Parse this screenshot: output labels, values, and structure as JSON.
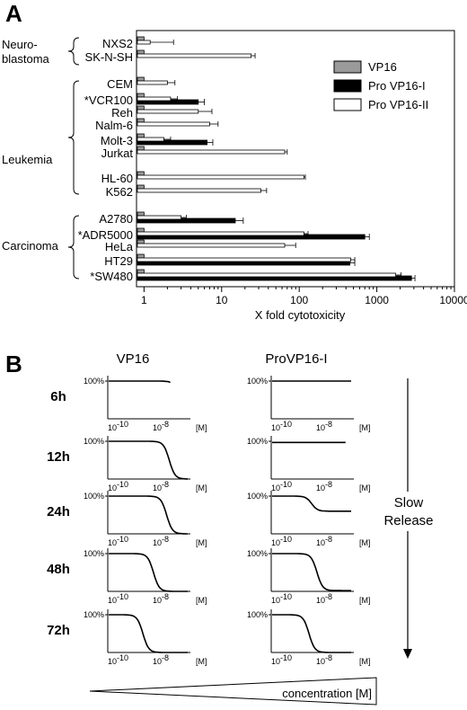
{
  "panels": {
    "a": "A",
    "b": "B"
  },
  "chart_data": [
    {
      "type": "bar",
      "orientation": "horizontal",
      "xscale": "log",
      "xlim": [
        0.8,
        10000
      ],
      "xticks": [
        "1",
        "10",
        "100",
        "1000",
        "10000"
      ],
      "xlabel": "X fold cytotoxicity",
      "legend": {
        "placement": "top-right",
        "entries": [
          "VP16",
          "Pro VP16-I",
          "Pro VP16-II"
        ]
      },
      "series_colors": [
        "#9a9a9a",
        "#000000",
        "#ffffff"
      ],
      "groups": [
        {
          "label": "Neuro-\nblastoma",
          "line1": "Neuro-",
          "line2": "blastoma",
          "cells": [
            "NXS2",
            "SK-N-SH"
          ]
        },
        {
          "label": "Leukemia",
          "cells": [
            "CEM",
            "*VCR100",
            "Reh",
            "Nalm-6",
            "Molt-3",
            "Jurkat",
            "HL-60",
            "K562"
          ]
        },
        {
          "label": "Carcinoma",
          "cells": [
            "A2780",
            "*ADR5000",
            "HeLa",
            "HT29",
            "*SW480"
          ]
        }
      ],
      "categories": [
        "NXS2",
        "SK-N-SH",
        "CEM",
        "*VCR100",
        "Reh",
        "Nalm-6",
        "Molt-3",
        "Jurkat",
        "HL-60",
        "K562",
        "A2780",
        "*ADR5000",
        "HeLa",
        "HT29",
        "*SW480"
      ],
      "series": [
        {
          "name": "VP16",
          "values": [
            1,
            1,
            1,
            1,
            1,
            1,
            1,
            1,
            1,
            1,
            1,
            1,
            1,
            1,
            1
          ]
        },
        {
          "name": "Pro VP16-I",
          "values": [
            null,
            null,
            null,
            5,
            null,
            null,
            6.5,
            null,
            null,
            null,
            15,
            700,
            null,
            450,
            2800
          ]
        },
        {
          "name": "Pro VP16-II",
          "values": [
            1.2,
            24,
            2,
            2.2,
            5,
            7,
            1.8,
            65,
            115,
            32,
            3,
            115,
            65,
            460,
            1750
          ]
        }
      ],
      "errors": {
        "Pro VP16-I": [
          null,
          null,
          null,
          1,
          null,
          null,
          1.2,
          null,
          null,
          null,
          4,
          100,
          null,
          70,
          300
        ],
        "Pro VP16-II": [
          1.2,
          3,
          0.5,
          0.5,
          2.5,
          2,
          0.4,
          5,
          5,
          6,
          0.5,
          15,
          25,
          60,
          300
        ]
      }
    },
    {
      "type": "line",
      "title_left": "VP16",
      "title_right": "ProVP16-I",
      "ytick": "100%",
      "x_tick_labels": [
        "10",
        "-10",
        "10",
        "-8",
        "[M]"
      ],
      "x_tick_left": "10-10",
      "x_tick_right": "10-8",
      "x_unit": "[M]",
      "times": [
        "6h",
        "12h",
        "24h",
        "48h",
        "72h"
      ],
      "curves": {
        "VP16_ec50_log10": [
          -7.3,
          -7.7,
          -7.8,
          -8.3,
          -8.7
        ],
        "ProVP16-I_ec50_log10": [
          null,
          null,
          -8.5,
          -8.3,
          -8.6
        ],
        "ProVP16-I_bottom_fraction": [
          1.0,
          0.97,
          0.6,
          0.02,
          0.0
        ],
        "VP16_bottom_fraction": [
          0,
          0,
          0,
          0,
          0
        ]
      },
      "arrow_label_1": "Slow",
      "arrow_label_2": "Release",
      "wedge_label": "concentration [M]"
    }
  ]
}
